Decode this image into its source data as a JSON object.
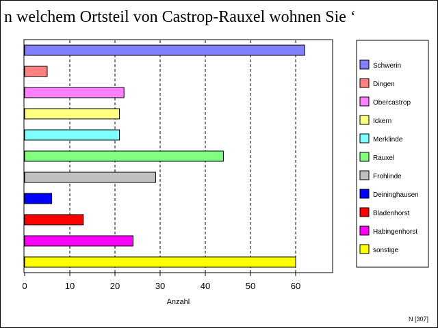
{
  "chart_data": {
    "type": "bar",
    "orientation": "horizontal",
    "title": "n welchem Ortsteil von Castrop-Rauxel wohnen Sie ‘",
    "xlabel": "Anzahl",
    "ylabel": "",
    "xlim": [
      0,
      68
    ],
    "xticks": [
      0,
      10,
      20,
      30,
      40,
      50,
      60
    ],
    "grid": "vertical dashed",
    "legend_position": "right",
    "categories": [
      "Schwerin",
      "Dingen",
      "Obercastrop",
      "Ickern",
      "Merklinde",
      "Rauxel",
      "Frohlinde",
      "Deininghausen",
      "Bladenhorst",
      "Habingenhorst",
      "sonstige"
    ],
    "values": [
      62,
      5,
      22,
      21,
      21,
      44,
      29,
      6,
      13,
      24,
      60
    ],
    "colors": [
      "#8080ff",
      "#ff8080",
      "#ff80ff",
      "#ffff80",
      "#80ffff",
      "#80ff80",
      "#c0c0c0",
      "#0000ff",
      "#ff0000",
      "#ff00ff",
      "#ffff00"
    ],
    "footnote": "N [307]"
  }
}
